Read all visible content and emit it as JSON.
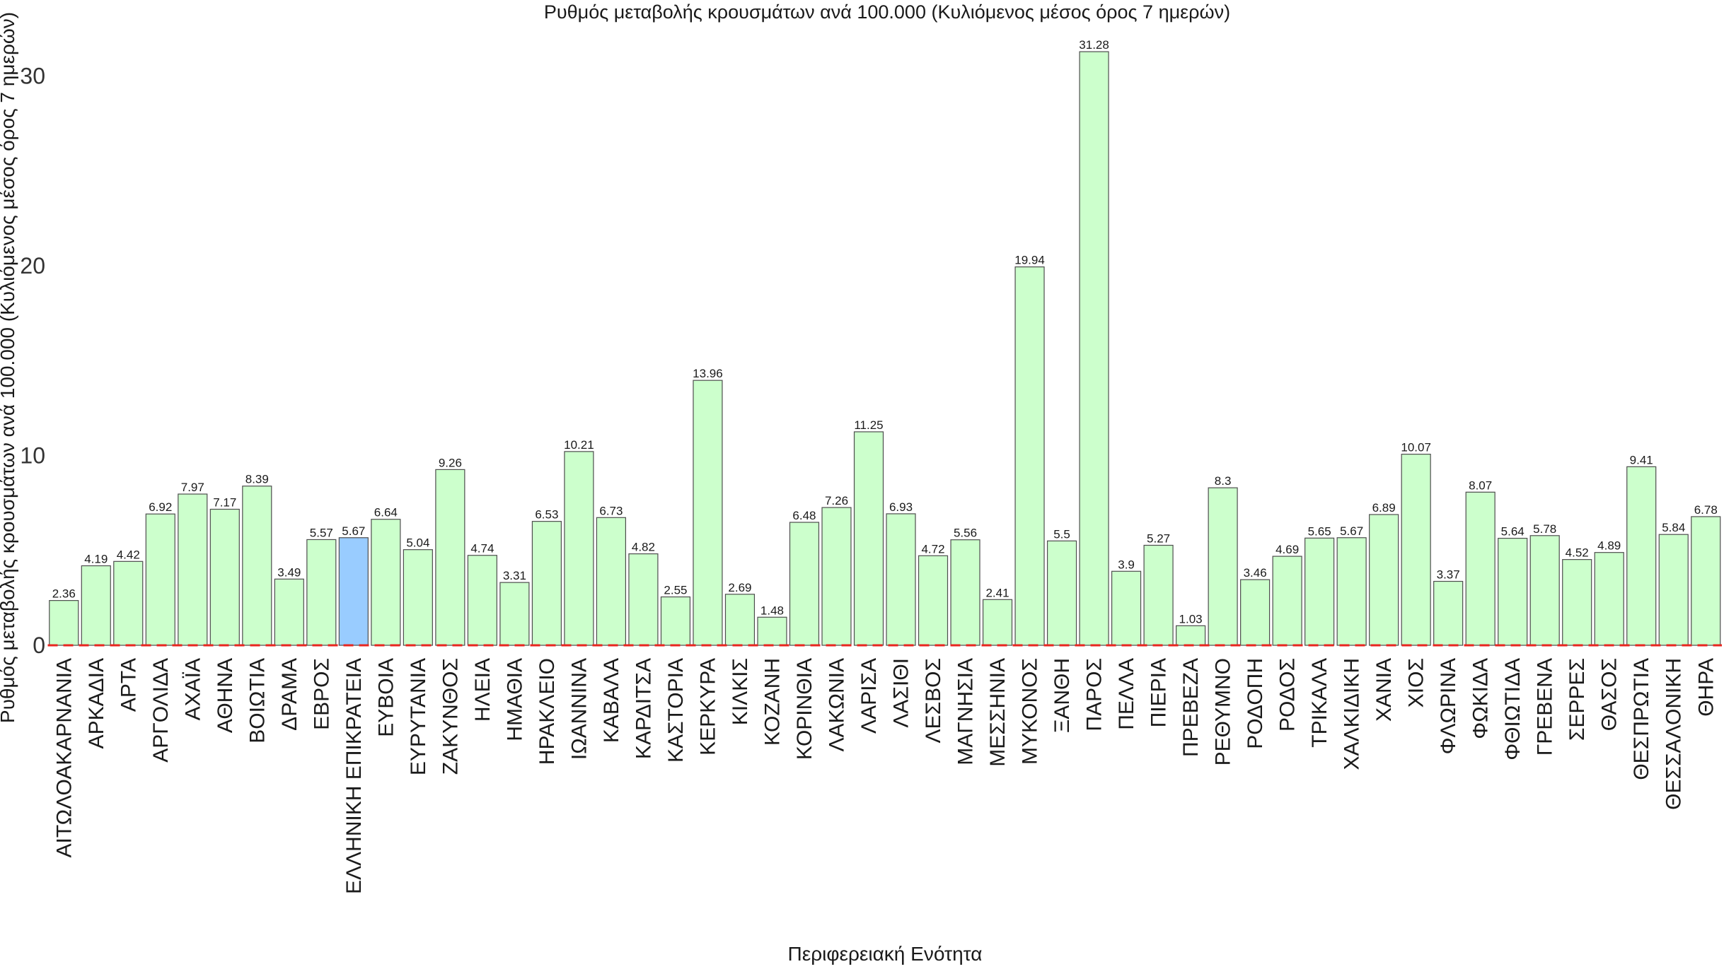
{
  "chart_data": {
    "type": "bar",
    "title": "Ρυθμός μεταβολής κρουσμάτων ανά 100.000 (Κυλιόμενος μέσος όρος 7 ημερών)",
    "xlabel": "Περιφερειακή Ενότητα",
    "ylabel": "Ρυθμός μεταβολής κρουσμάτων ανά 100.000 (Κυλιόμενος μέσος όρος 7 ημερών)",
    "ylim": [
      0,
      32.5
    ],
    "yticks": [
      0,
      10,
      20,
      30
    ],
    "grid": false,
    "reference_line": {
      "y": 0,
      "style": "dashed",
      "color": "#e8261f"
    },
    "colors": {
      "default": "#ccffcc",
      "highlight": "#99ccff",
      "border": "#4d4d4d"
    },
    "highlight_category": "ΕΛΛΗΝΙΚΗ ΕΠΙΚΡΑΤΕΙΑ",
    "categories": [
      "ΑΙΤΩΛΟΑΚΑΡΝΑΝΙΑ",
      "ΑΡΚΑΔΙΑ",
      "ΑΡΤΑ",
      "ΑΡΓΟΛΙΔΑ",
      "ΑΧΑΪΑ",
      "ΑΘΗΝΑ",
      "ΒΟΙΩΤΙΑ",
      "ΔΡΑΜΑ",
      "ΕΒΡΟΣ",
      "ΕΛΛΗΝΙΚΗ ΕΠΙΚΡΑΤΕΙΑ",
      "ΕΥΒΟΙΑ",
      "ΕΥΡΥΤΑΝΙΑ",
      "ΖΑΚΥΝΘΟΣ",
      "ΗΛΕΙΑ",
      "ΗΜΑΘΙΑ",
      "ΗΡΑΚΛΕΙΟ",
      "ΙΩΑΝΝΙΝΑ",
      "ΚΑΒΑΛΑ",
      "ΚΑΡΔΙΤΣΑ",
      "ΚΑΣΤΟΡΙΑ",
      "ΚΕΡΚΥΡΑ",
      "ΚΙΛΚΙΣ",
      "ΚΟΖΑΝΗ",
      "ΚΟΡΙΝΘΙΑ",
      "ΛΑΚΩΝΙΑ",
      "ΛΑΡΙΣΑ",
      "ΛΑΣΙΘΙ",
      "ΛΕΣΒΟΣ",
      "ΜΑΓΝΗΣΙΑ",
      "ΜΕΣΣΗΝΙΑ",
      "ΜΥΚΟΝΟΣ",
      "ΞΑΝΘΗ",
      "ΠΑΡΟΣ",
      "ΠΕΛΛΑ",
      "ΠΙΕΡΙΑ",
      "ΠΡΕΒΕΖΑ",
      "ΡΕΘΥΜΝΟ",
      "ΡΟΔΟΠΗ",
      "ΡΟΔΟΣ",
      "ΤΡΙΚΑΛΑ",
      "ΧΑΛΚΙΔΙΚΗ",
      "ΧΑΝΙΑ",
      "ΧΙΟΣ",
      "ΦΛΩΡΙΝΑ",
      "ΦΩΚΙΔΑ",
      "ΦΘΙΩΤΙΔΑ",
      "ΓΡΕΒΕΝΑ",
      "ΣΕΡΡΕΣ",
      "ΘΑΣΟΣ",
      "ΘΕΣΠΡΩΤΙΑ",
      "ΘΕΣΣΑΛΟΝΙΚΗ",
      "ΘΗΡΑ"
    ],
    "values": [
      2.36,
      4.19,
      4.42,
      6.92,
      7.97,
      7.17,
      8.39,
      3.49,
      5.57,
      5.67,
      6.64,
      5.04,
      9.26,
      4.74,
      3.31,
      6.53,
      10.21,
      6.73,
      4.82,
      2.55,
      13.96,
      2.69,
      1.48,
      6.48,
      7.26,
      11.25,
      6.93,
      4.72,
      5.56,
      2.41,
      19.94,
      5.5,
      31.28,
      3.9,
      5.27,
      1.03,
      8.3,
      3.46,
      4.69,
      5.65,
      5.67,
      6.89,
      10.07,
      3.37,
      8.07,
      5.64,
      5.78,
      4.52,
      4.89,
      9.41,
      5.84,
      6.78
    ],
    "value_labels": [
      "2.36",
      "4.19",
      "4.42",
      "6.92",
      "7.97",
      "7.17",
      "8.39",
      "3.49",
      "5.57",
      "5.67",
      "6.64",
      "5.04",
      "9.26",
      "4.74",
      "3.31",
      "6.53",
      "10.21",
      "6.73",
      "4.82",
      "2.55",
      "13.96",
      "2.69",
      "1.48",
      "6.48",
      "7.26",
      "11.25",
      "6.93",
      "4.72",
      "5.56",
      "2.41",
      "19.94",
      "5.5",
      "31.28",
      "3.9",
      "5.27",
      "1.03",
      "8.3",
      "3.46",
      "4.69",
      "5.65",
      "5.67",
      "6.89",
      "10.07",
      "3.37",
      "8.07",
      "5.64",
      "5.78",
      "4.52",
      "4.89",
      "9.41",
      "5.84",
      "6.78"
    ]
  }
}
